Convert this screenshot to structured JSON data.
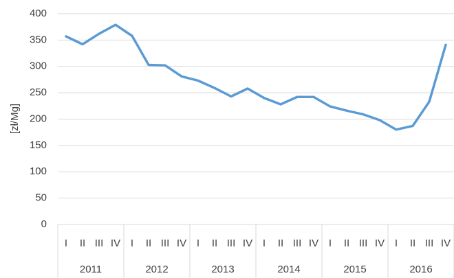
{
  "chart_data": {
    "type": "line",
    "y_label": "[zł/Mg]",
    "categories": [
      "I",
      "II",
      "III",
      "IV",
      "I",
      "II",
      "III",
      "IV",
      "I",
      "II",
      "III",
      "IV",
      "I",
      "II",
      "III",
      "IV",
      "I",
      "II",
      "III",
      "IV",
      "I",
      "II",
      "III",
      "IV"
    ],
    "years": [
      "2011",
      "2012",
      "2013",
      "2014",
      "2015",
      "2016"
    ],
    "values": [
      357,
      342,
      362,
      379,
      358,
      303,
      302,
      281,
      273,
      259,
      243,
      258,
      240,
      228,
      242,
      242,
      224,
      216,
      209,
      198,
      180,
      187,
      233,
      341
    ],
    "color": "#5b9bd5",
    "ylim": [
      0,
      400
    ],
    "yticks": [
      0,
      50,
      100,
      150,
      200,
      250,
      300,
      350,
      400
    ],
    "grid": true
  }
}
